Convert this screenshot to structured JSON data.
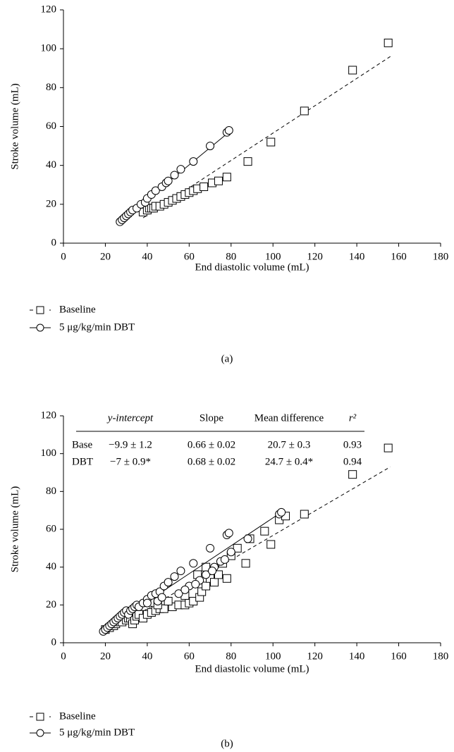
{
  "chart_data": [
    {
      "type": "scatter",
      "panel_label": "(a)",
      "x_label": "End diastolic volume (mL)",
      "y_label": "Stroke volume (mL)",
      "xlim": [
        0,
        180
      ],
      "ylim": [
        0,
        120
      ],
      "xticks": [
        0,
        20,
        40,
        60,
        80,
        100,
        120,
        140,
        160,
        180
      ],
      "yticks": [
        0,
        20,
        40,
        60,
        80,
        100,
        120
      ],
      "series": [
        {
          "name": "Baseline",
          "color": "#000000",
          "marker": "square",
          "fit_style": "dashed",
          "x": [
            38,
            40,
            41,
            42,
            43,
            44,
            46,
            48,
            50,
            52,
            54,
            56,
            58,
            60,
            62,
            64,
            67,
            71,
            74,
            78,
            88,
            99,
            115,
            138,
            155
          ],
          "y": [
            16,
            17,
            18,
            18,
            18,
            19,
            19,
            20,
            21,
            22,
            23,
            24,
            25,
            26,
            27,
            28,
            29,
            31,
            32,
            34,
            42,
            52,
            68,
            89,
            103
          ],
          "fit": {
            "x": [
              38,
              156
            ],
            "y": [
              13,
              96
            ]
          }
        },
        {
          "name": "5 μg/kg/min DBT",
          "color": "#000000",
          "marker": "circle",
          "fit_style": "solid",
          "x": [
            27,
            28,
            29,
            30,
            31,
            32,
            33,
            35,
            37,
            39,
            40,
            42,
            44,
            47,
            49,
            50,
            53,
            56,
            62,
            70,
            78,
            79
          ],
          "y": [
            11,
            12,
            13,
            14,
            15,
            16,
            17,
            18,
            20,
            21,
            23,
            25,
            27,
            29,
            31,
            32,
            35,
            38,
            42,
            50,
            57,
            58
          ],
          "fit": {
            "x": [
              27,
              80
            ],
            "y": [
              11,
              58
            ]
          }
        }
      ]
    },
    {
      "type": "scatter",
      "panel_label": "(b)",
      "x_label": "End diastolic volume (mL)",
      "y_label": "Stroke volume (mL)",
      "xlim": [
        0,
        180
      ],
      "ylim": [
        0,
        120
      ],
      "xticks": [
        0,
        20,
        40,
        60,
        80,
        100,
        120,
        140,
        160,
        180
      ],
      "yticks": [
        0,
        20,
        40,
        60,
        80,
        100,
        120
      ],
      "table": {
        "header": [
          "y-intercept",
          "Slope",
          "Mean difference",
          "r²"
        ],
        "rows": [
          [
            "Base",
            "−9.9 ± 1.2",
            "0.66 ± 0.02",
            "20.7 ± 0.3",
            "0.93"
          ],
          [
            "DBT",
            "−7 ± 0.9*",
            "0.68 ± 0.02",
            "24.7 ± 0.4*",
            "0.94"
          ]
        ]
      },
      "series": [
        {
          "name": "Baseline",
          "color": "#000000",
          "marker": "square",
          "fit_style": "dashed",
          "x": [
            20,
            22,
            24,
            25,
            27,
            28,
            30,
            31,
            32,
            33,
            34,
            35,
            36,
            38,
            40,
            42,
            44,
            46,
            48,
            52,
            55,
            58,
            60,
            62,
            65,
            66,
            68,
            70,
            72,
            74,
            76,
            78,
            80,
            83,
            87,
            89,
            96,
            99,
            103,
            106,
            115,
            138,
            155,
            64,
            68,
            58,
            50,
            45
          ],
          "y": [
            7,
            8,
            9,
            10,
            11,
            11,
            12,
            13,
            13,
            10,
            12,
            14,
            15,
            13,
            15,
            16,
            17,
            18,
            18,
            19,
            20,
            20,
            21,
            22,
            24,
            27,
            30,
            34,
            32,
            36,
            42,
            34,
            46,
            50,
            42,
            55,
            59,
            52,
            65,
            67,
            68,
            89,
            103,
            36,
            40,
            25,
            22,
            20
          ],
          "fit": {
            "x": [
              20,
              156
            ],
            "y": [
              5,
              93
            ]
          }
        },
        {
          "name": "5 μg/kg/min DBT",
          "color": "#000000",
          "marker": "circle",
          "fit_style": "solid",
          "x": [
            19,
            20,
            21,
            22,
            23,
            24,
            25,
            26,
            27,
            28,
            29,
            30,
            31,
            32,
            33,
            34,
            35,
            36,
            38,
            40,
            42,
            44,
            46,
            48,
            50,
            53,
            56,
            62,
            70,
            78,
            79,
            45,
            55,
            60,
            65,
            68,
            72,
            75,
            80,
            88,
            103,
            104,
            40,
            47,
            58,
            63,
            71,
            77
          ],
          "y": [
            6,
            7,
            8,
            9,
            10,
            11,
            12,
            13,
            14,
            15,
            16,
            17,
            15,
            17,
            18,
            19,
            20,
            19,
            21,
            23,
            25,
            26,
            27,
            30,
            32,
            35,
            38,
            42,
            50,
            57,
            58,
            22,
            26,
            30,
            33,
            36,
            40,
            43,
            48,
            55,
            68,
            69,
            21,
            24,
            28,
            31,
            38,
            44
          ],
          "fit": {
            "x": [
              20,
              104
            ],
            "y": [
              7,
              69
            ]
          }
        }
      ]
    }
  ]
}
